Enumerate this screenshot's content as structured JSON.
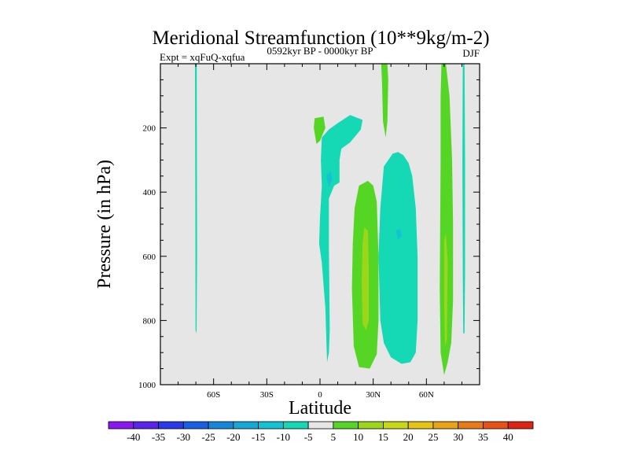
{
  "chart_data": {
    "type": "heatmap",
    "title": "Meridional Streamfunction (10**9kg/m-2)",
    "subtitle_left": "Expt = xqFuQ-xqfua",
    "subtitle_center": "0592kyr BP - 0000kyr BP",
    "subtitle_right": "DJF",
    "xlabel": "Latitude",
    "ylabel": "Pressure (in hPa)",
    "xlim": [
      -90,
      90
    ],
    "ylim": [
      0,
      1000
    ],
    "y_inverted": true,
    "x_ticks": [
      {
        "value": -60,
        "label": "60S"
      },
      {
        "value": -30,
        "label": "30S"
      },
      {
        "value": 0,
        "label": "0"
      },
      {
        "value": 30,
        "label": "30N"
      },
      {
        "value": 60,
        "label": "60N"
      }
    ],
    "y_ticks": [
      {
        "value": 200,
        "label": "200"
      },
      {
        "value": 400,
        "label": "400"
      },
      {
        "value": 600,
        "label": "600"
      },
      {
        "value": 800,
        "label": "800"
      },
      {
        "value": 1000,
        "label": "1000"
      }
    ],
    "background_color": "#e6e6e6",
    "regions": [
      {
        "name": "negative-cell-60s",
        "level": -5,
        "color": "#15d8b4",
        "points": [
          [
            -70.5,
            0
          ],
          [
            -69.5,
            0
          ],
          [
            -69.3,
            600
          ],
          [
            -69.6,
            840
          ],
          [
            -70.2,
            830
          ],
          [
            -70.3,
            400
          ]
        ]
      },
      {
        "name": "positive-cell-eq-upper",
        "level": 5,
        "color": "#56d624",
        "points": [
          [
            -3,
            170
          ],
          [
            2,
            165
          ],
          [
            3,
            200
          ],
          [
            0,
            240
          ],
          [
            -2,
            250
          ],
          [
            -3.5,
            200
          ]
        ]
      },
      {
        "name": "negative-cell-eq",
        "level": -5,
        "color": "#15d8b4",
        "points": [
          [
            1,
            230
          ],
          [
            5,
            205
          ],
          [
            10,
            185
          ],
          [
            17,
            160
          ],
          [
            24,
            175
          ],
          [
            23,
            205
          ],
          [
            17,
            245
          ],
          [
            12,
            265
          ],
          [
            11,
            300
          ],
          [
            11,
            370
          ],
          [
            8,
            380
          ],
          [
            5,
            420
          ],
          [
            5,
            570
          ],
          [
            5.5,
            830
          ],
          [
            5,
            900
          ],
          [
            4,
            930
          ],
          [
            3,
            760
          ],
          [
            1,
            620
          ],
          [
            -0.5,
            560
          ],
          [
            0,
            480
          ],
          [
            1,
            380
          ],
          [
            0.5,
            300
          ]
        ]
      },
      {
        "name": "negative-cell-eq-core",
        "level": -10,
        "color": "#14c2d6",
        "points": [
          [
            3.5,
            350
          ],
          [
            6,
            335
          ],
          [
            7,
            360
          ],
          [
            5,
            385
          ]
        ]
      },
      {
        "name": "positive-cell-20n",
        "level": 5,
        "color": "#56d624",
        "points": [
          [
            22,
            380
          ],
          [
            27,
            365
          ],
          [
            30,
            380
          ],
          [
            32,
            430
          ],
          [
            33,
            600
          ],
          [
            33,
            800
          ],
          [
            32,
            905
          ],
          [
            28,
            950
          ],
          [
            22,
            945
          ],
          [
            19,
            880
          ],
          [
            18,
            700
          ],
          [
            18.5,
            560
          ],
          [
            19.5,
            450
          ]
        ]
      },
      {
        "name": "positive-cell-20n-core",
        "level": 10,
        "color": "#9bd61a",
        "points": [
          [
            25,
            510
          ],
          [
            27,
            520
          ],
          [
            27.5,
            620
          ],
          [
            27.5,
            800
          ],
          [
            26,
            830
          ],
          [
            24,
            810
          ],
          [
            23.5,
            680
          ],
          [
            24,
            560
          ]
        ]
      },
      {
        "name": "negative-cell-40n",
        "level": -5,
        "color": "#15d8b4",
        "points": [
          [
            41,
            280
          ],
          [
            44,
            275
          ],
          [
            47,
            285
          ],
          [
            50,
            310
          ],
          [
            52,
            350
          ],
          [
            54,
            450
          ],
          [
            55,
            600
          ],
          [
            55,
            800
          ],
          [
            54,
            900
          ],
          [
            51,
            930
          ],
          [
            46,
            935
          ],
          [
            40,
            915
          ],
          [
            36,
            870
          ],
          [
            34,
            800
          ],
          [
            33,
            600
          ],
          [
            34,
            450
          ],
          [
            36,
            320
          ]
        ]
      },
      {
        "name": "negative-cell-40n-core",
        "level": -10,
        "color": "#14c2d6",
        "points": [
          [
            43,
            520
          ],
          [
            45,
            515
          ],
          [
            46,
            535
          ],
          [
            44,
            550
          ]
        ]
      },
      {
        "name": "positive-cell-35n-upper",
        "level": 5,
        "color": "#56d624",
        "points": [
          [
            34.5,
            0
          ],
          [
            38,
            0
          ],
          [
            38.5,
            50
          ],
          [
            38,
            180
          ],
          [
            37,
            230
          ],
          [
            35.5,
            180
          ],
          [
            35,
            60
          ]
        ]
      },
      {
        "name": "positive-cell-70n",
        "level": 5,
        "color": "#56d624",
        "points": [
          [
            68.5,
            0
          ],
          [
            71,
            0
          ],
          [
            73,
            100
          ],
          [
            74.5,
            300
          ],
          [
            75,
            500
          ],
          [
            75,
            740
          ],
          [
            74,
            870
          ],
          [
            72,
            930
          ],
          [
            70,
            970
          ],
          [
            68,
            900
          ],
          [
            67.5,
            700
          ],
          [
            68,
            300
          ],
          [
            68,
            100
          ]
        ]
      },
      {
        "name": "positive-cell-70n-core",
        "level": 10,
        "color": "#9bd61a",
        "points": [
          [
            70,
            550
          ],
          [
            71,
            530
          ],
          [
            72,
            620
          ],
          [
            71.5,
            860
          ],
          [
            70.5,
            880
          ],
          [
            70,
            750
          ]
        ]
      },
      {
        "name": "negative-cell-80n",
        "level": -5,
        "color": "#15d8b4",
        "points": [
          [
            80.5,
            0
          ],
          [
            81.5,
            0
          ],
          [
            81.8,
            300
          ],
          [
            81.8,
            650
          ],
          [
            81.5,
            840
          ],
          [
            80.8,
            840
          ],
          [
            80.5,
            650
          ],
          [
            80.3,
            300
          ]
        ]
      }
    ],
    "colorbar": {
      "levels": [
        -40,
        -35,
        -30,
        -25,
        -20,
        -15,
        -10,
        -5,
        5,
        10,
        15,
        20,
        25,
        30,
        35,
        40
      ],
      "colors": [
        "#8a18f0",
        "#5a24ea",
        "#2a3ae8",
        "#1760e6",
        "#1488d8",
        "#14a8d8",
        "#14c2d6",
        "#15d8b4",
        "#e6e6e6",
        "#56d624",
        "#9bd61a",
        "#c8d818",
        "#e6c316",
        "#eaa216",
        "#ea7a16",
        "#e85214",
        "#e02414"
      ]
    }
  }
}
